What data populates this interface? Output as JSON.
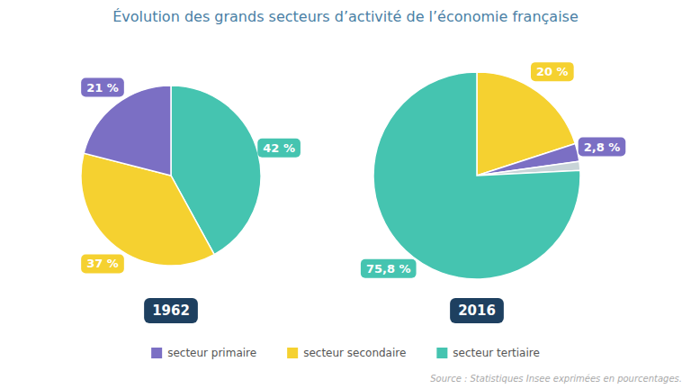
{
  "chart_data": [
    {
      "type": "pie",
      "title": "Évolution des grands secteurs d’activité de l’économie française",
      "subtitle": "1962",
      "annotations": [
        "Source : Statistiques Insee exprimées en pourcentages."
      ],
      "categories": [
        "secteur tertiaire",
        "secteur secondaire",
        "secteur primaire"
      ],
      "values": [
        42,
        37,
        21
      ],
      "colors": [
        "#45c4b0",
        "#f5d130",
        "#7b6fc4"
      ],
      "value_labels": [
        "42 %",
        "37 %",
        "21 %"
      ],
      "data_labels": true
    },
    {
      "type": "pie",
      "subtitle": "2016",
      "categories": [
        "secteur secondaire",
        "secteur primaire",
        null,
        "secteur tertiaire"
      ],
      "values": [
        20,
        2.8,
        1.4,
        75.8
      ],
      "colors": [
        "#f5d130",
        "#7b6fc4",
        "#c8d4d8",
        "#45c4b0"
      ],
      "value_labels": [
        "20 %",
        "2,8 %",
        null,
        "75,8 %"
      ],
      "data_labels": true
    }
  ]
}
